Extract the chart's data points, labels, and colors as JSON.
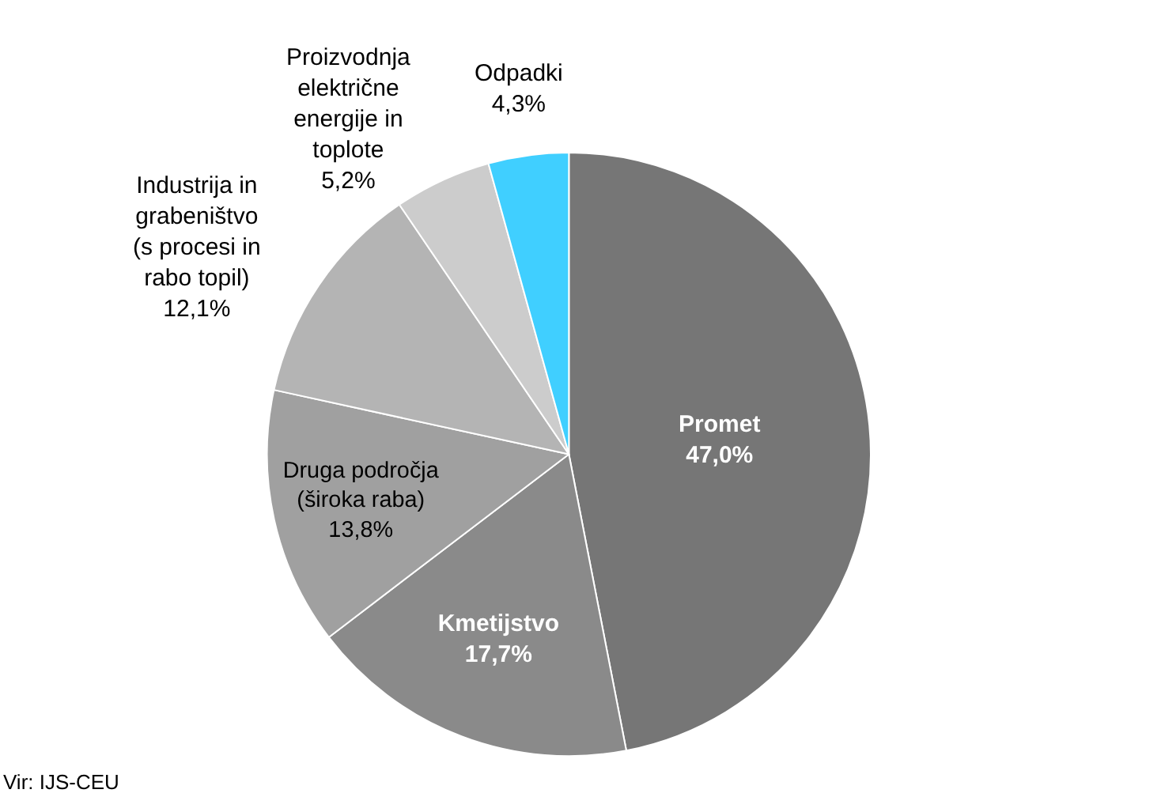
{
  "chart_data": {
    "type": "pie",
    "categories": [
      "Promet",
      "Kmetijstvo",
      "Druga področja (široka raba)",
      "Industrija in grabeništvo (s procesi in rabo topil)",
      "Proizvodnja električne energije in toplote",
      "Odpadki"
    ],
    "values": [
      47.0,
      17.7,
      13.8,
      12.1,
      5.2,
      4.3
    ],
    "value_labels": [
      "47,0%",
      "17,7%",
      "13,8%",
      "12,1%",
      "5,2%",
      "4,3%"
    ],
    "colors": [
      "#767676",
      "#8a8a8a",
      "#a0a0a0",
      "#b4b4b4",
      "#cccccc",
      "#40cfff"
    ],
    "legend": false,
    "annotations": [
      "Vir: IJS-CEU"
    ]
  }
}
